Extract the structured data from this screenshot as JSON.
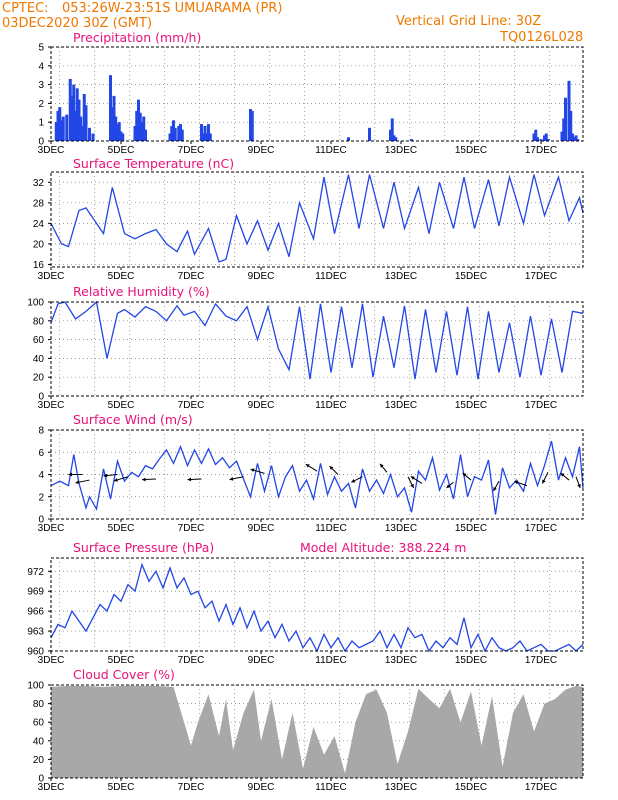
{
  "header": {
    "center": "CPTEC:",
    "location": "053:26W-23:51S   UMUARAMA (PR)",
    "run": "03DEC2020 30Z (GMT)",
    "grid_note": "Vertical Grid Line: 30Z",
    "code": "TQ0126L028"
  },
  "colors": {
    "header_text": "#f07800",
    "panel_title": "#e8127a",
    "series": "#2346e6",
    "cloud_fill": "#a8a8a8"
  },
  "chart_data": [
    {
      "id": "precip",
      "type": "bar",
      "title": "Precipitation (mm/h)",
      "ylim": [
        0,
        5
      ],
      "yticks": [
        0,
        1,
        2,
        3,
        4,
        5
      ],
      "xlabels": [
        "3DEC",
        "5DEC",
        "7DEC",
        "9DEC",
        "11DEC",
        "13DEC",
        "15DEC",
        "17DEC"
      ],
      "grid": true,
      "x_days": [
        0.15,
        0.2,
        0.25,
        0.3,
        0.35,
        0.45,
        0.55,
        0.6,
        0.65,
        0.7,
        0.75,
        0.8,
        0.85,
        0.9,
        0.95,
        1.0,
        1.1,
        1.2,
        1.7,
        1.75,
        1.8,
        1.85,
        1.9,
        1.95,
        2.0,
        2.05,
        2.4,
        2.45,
        2.5,
        2.55,
        2.6,
        2.65,
        2.7,
        3.4,
        3.45,
        3.5,
        3.55,
        3.65,
        3.7,
        3.75,
        4.3,
        4.35,
        4.4,
        4.45,
        4.5,
        4.55,
        5.7,
        5.75,
        8.5,
        9.1,
        9.7,
        9.75,
        9.8,
        9.85,
        10.3,
        13.8,
        13.85,
        13.9,
        14.0,
        14.1,
        14.15,
        14.2,
        14.6,
        14.65,
        14.7,
        14.8,
        14.85,
        14.9,
        14.95,
        15.0,
        15.05
      ],
      "values": [
        1.0,
        1.6,
        1.8,
        1.1,
        1.3,
        1.4,
        3.3,
        2.4,
        3.0,
        1.6,
        2.8,
        2.2,
        1.3,
        0.8,
        2.5,
        1.9,
        0.7,
        0.4,
        3.5,
        1.8,
        2.4,
        1.3,
        0.9,
        1.0,
        0.5,
        0.4,
        0.8,
        1.6,
        2.2,
        1.5,
        1.0,
        1.3,
        0.6,
        0.4,
        0.8,
        1.1,
        0.7,
        0.8,
        0.9,
        0.6,
        0.9,
        0.4,
        0.8,
        0.4,
        0.9,
        0.4,
        1.7,
        1.6,
        0.2,
        0.7,
        0.6,
        1.2,
        0.3,
        0.2,
        0.1,
        0.4,
        0.6,
        0.2,
        0.1,
        0.3,
        0.4,
        0.1,
        0.5,
        1.2,
        2.3,
        3.2,
        1.6,
        0.4,
        0.2,
        0.3,
        0.1
      ]
    },
    {
      "id": "temp",
      "type": "line",
      "title": "Surface Temperature (nC)",
      "ylim": [
        15.5,
        34
      ],
      "yticks": [
        16,
        20,
        24,
        28,
        32
      ],
      "xlabels": [
        "3DEC",
        "5DEC",
        "7DEC",
        "9DEC",
        "11DEC",
        "13DEC",
        "15DEC",
        "17DEC"
      ],
      "grid": true,
      "x_days": [
        0.0,
        0.3,
        0.5,
        0.8,
        1.0,
        1.3,
        1.5,
        1.75,
        2.1,
        2.4,
        2.7,
        3.0,
        3.3,
        3.6,
        3.9,
        4.1,
        4.5,
        4.8,
        5.0,
        5.3,
        5.6,
        5.9,
        6.2,
        6.5,
        6.8,
        7.1,
        7.5,
        7.8,
        8.1,
        8.5,
        8.8,
        9.1,
        9.5,
        9.8,
        10.1,
        10.5,
        10.8,
        11.1,
        11.5,
        11.8,
        12.1,
        12.5,
        12.8,
        13.1,
        13.5,
        13.8,
        14.1,
        14.5,
        14.8,
        15.1,
        15.2
      ],
      "values": [
        24,
        20,
        19.5,
        26.5,
        27,
        24,
        22,
        31,
        22,
        21,
        22,
        22.8,
        20,
        18.5,
        22.5,
        18,
        23,
        16.5,
        17,
        25.5,
        20,
        24.5,
        18.8,
        24,
        17.5,
        28,
        21,
        33,
        22,
        33.5,
        23,
        33.5,
        23,
        32,
        23,
        31,
        22,
        32,
        23,
        33,
        23,
        32.5,
        23.5,
        33,
        24,
        33.5,
        25.5,
        33,
        24.5,
        29,
        26
      ]
    },
    {
      "id": "rh",
      "type": "line",
      "title": "Relative Humidity (%)",
      "ylim": [
        0,
        100
      ],
      "yticks": [
        0,
        20,
        40,
        60,
        80,
        100
      ],
      "xlabels": [
        "3DEC",
        "5DEC",
        "7DEC",
        "9DEC",
        "11DEC",
        "13DEC",
        "15DEC",
        "17DEC"
      ],
      "grid": true,
      "x_days": [
        0.0,
        0.2,
        0.4,
        0.7,
        1.0,
        1.3,
        1.6,
        1.9,
        2.1,
        2.4,
        2.7,
        3.0,
        3.3,
        3.6,
        3.8,
        4.1,
        4.4,
        4.7,
        5.0,
        5.3,
        5.6,
        5.9,
        6.2,
        6.5,
        6.8,
        7.1,
        7.4,
        7.7,
        8.0,
        8.3,
        8.6,
        8.9,
        9.2,
        9.5,
        9.8,
        10.1,
        10.4,
        10.7,
        11.0,
        11.3,
        11.6,
        11.9,
        12.2,
        12.5,
        12.8,
        13.1,
        13.4,
        13.7,
        14.0,
        14.3,
        14.6,
        14.9,
        15.2
      ],
      "values": [
        78,
        98,
        100,
        82,
        90,
        100,
        40,
        88,
        92,
        84,
        95,
        90,
        80,
        96,
        86,
        90,
        75,
        98,
        85,
        80,
        95,
        60,
        95,
        50,
        28,
        95,
        18,
        98,
        25,
        95,
        30,
        98,
        20,
        85,
        30,
        96,
        18,
        92,
        25,
        90,
        22,
        95,
        18,
        90,
        25,
        78,
        20,
        85,
        22,
        82,
        25,
        90,
        88
      ]
    },
    {
      "id": "wind",
      "type": "line",
      "title": "Surface Wind (m/s)",
      "ylim": [
        0,
        8
      ],
      "yticks": [
        0,
        2,
        4,
        6,
        8
      ],
      "xlabels": [
        "3DEC",
        "5DEC",
        "7DEC",
        "9DEC",
        "11DEC",
        "13DEC",
        "15DEC",
        "17DEC"
      ],
      "grid": true,
      "x_days": [
        0.0,
        0.25,
        0.5,
        0.65,
        0.8,
        1.0,
        1.1,
        1.3,
        1.5,
        1.7,
        1.9,
        2.1,
        2.3,
        2.5,
        2.7,
        2.9,
        3.1,
        3.3,
        3.5,
        3.7,
        3.9,
        4.1,
        4.3,
        4.5,
        4.7,
        4.9,
        5.1,
        5.3,
        5.5,
        5.7,
        5.9,
        6.1,
        6.3,
        6.5,
        6.7,
        6.9,
        7.1,
        7.3,
        7.5,
        7.7,
        7.9,
        8.1,
        8.3,
        8.5,
        8.7,
        8.9,
        9.1,
        9.3,
        9.5,
        9.7,
        9.9,
        10.1,
        10.3,
        10.5,
        10.7,
        10.9,
        11.1,
        11.3,
        11.5,
        11.7,
        11.9,
        12.1,
        12.3,
        12.5,
        12.7,
        12.9,
        13.1,
        13.3,
        13.5,
        13.7,
        13.9,
        14.1,
        14.3,
        14.5,
        14.7,
        14.9,
        15.1,
        15.2
      ],
      "values": [
        3.0,
        3.4,
        3.0,
        5.8,
        3.2,
        1.0,
        2.0,
        0.9,
        4.5,
        1.8,
        5.2,
        3.4,
        4.2,
        3.8,
        4.8,
        4.5,
        5.4,
        6.2,
        5.0,
        6.5,
        4.8,
        6.2,
        5.0,
        6.3,
        4.9,
        5.5,
        4.6,
        5.2,
        3.6,
        2.0,
        5.0,
        2.5,
        4.8,
        2.0,
        3.8,
        4.8,
        2.5,
        3.5,
        1.8,
        5.0,
        2.2,
        3.8,
        2.5,
        3.2,
        1.0,
        4.5,
        2.5,
        3.5,
        2.3,
        4.0,
        2.0,
        2.8,
        0.6,
        4.3,
        3.5,
        5.5,
        2.6,
        4.0,
        1.8,
        5.8,
        2.0,
        3.8,
        3.5,
        5.3,
        0.4,
        4.6,
        2.8,
        3.5,
        2.5,
        5.0,
        3.0,
        4.8,
        7.0,
        3.5,
        5.5,
        3.8,
        6.5,
        2.8
      ]
    },
    {
      "id": "pressure",
      "type": "line",
      "title": "Surface Pressure (hPa)",
      "subtitle": "Model Altitude: 388.224 m",
      "ylim": [
        960,
        974
      ],
      "yticks": [
        960,
        963,
        966,
        969,
        972
      ],
      "xlabels": [
        "3DEC",
        "5DEC",
        "7DEC",
        "9DEC",
        "11DEC",
        "13DEC",
        "15DEC",
        "17DEC"
      ],
      "grid": true,
      "x_days": [
        0.0,
        0.2,
        0.4,
        0.6,
        0.8,
        1.0,
        1.2,
        1.4,
        1.6,
        1.8,
        2.0,
        2.2,
        2.4,
        2.6,
        2.8,
        3.0,
        3.2,
        3.4,
        3.6,
        3.8,
        4.0,
        4.2,
        4.4,
        4.6,
        4.8,
        5.0,
        5.2,
        5.4,
        5.6,
        5.8,
        6.0,
        6.2,
        6.4,
        6.6,
        6.8,
        7.0,
        7.2,
        7.4,
        7.6,
        7.8,
        8.0,
        8.2,
        8.4,
        8.6,
        8.8,
        9.0,
        9.2,
        9.4,
        9.6,
        9.8,
        10.0,
        10.2,
        10.4,
        10.6,
        10.8,
        11.0,
        11.2,
        11.4,
        11.6,
        11.8,
        12.0,
        12.2,
        12.4,
        12.6,
        12.8,
        13.0,
        13.2,
        13.4,
        13.6,
        13.8,
        14.0,
        14.2,
        14.4,
        14.6,
        14.8,
        15.0,
        15.2
      ],
      "values": [
        962,
        964,
        963.5,
        966,
        964.5,
        963,
        965,
        967,
        966,
        968.5,
        967.5,
        970,
        969,
        973,
        970.5,
        972,
        969.5,
        972.5,
        969.5,
        971,
        968.5,
        969,
        966.5,
        967.5,
        964.5,
        967,
        964,
        966.5,
        963.5,
        966,
        963,
        964.5,
        962,
        964,
        961.5,
        963,
        960.5,
        962,
        960,
        962.5,
        960.5,
        962,
        960,
        961.5,
        960.5,
        961,
        961.5,
        963,
        960.5,
        962.5,
        960.5,
        963.5,
        962,
        962.5,
        960,
        961.5,
        960.5,
        962,
        961,
        965,
        960.5,
        962.5,
        960,
        962,
        960.5,
        960,
        960.5,
        961.5,
        960,
        960.5,
        961,
        960,
        960,
        960.5,
        961,
        960,
        961
      ]
    },
    {
      "id": "cloud",
      "type": "area",
      "title": "Cloud Cover (%)",
      "ylim": [
        0,
        100
      ],
      "yticks": [
        0,
        20,
        40,
        60,
        80,
        100
      ],
      "xlabels": [
        "3DEC",
        "5DEC",
        "7DEC",
        "9DEC",
        "11DEC",
        "13DEC",
        "15DEC",
        "17DEC"
      ],
      "grid": true,
      "x_days": [
        0.0,
        0.5,
        1.0,
        1.5,
        2.0,
        2.5,
        3.0,
        3.5,
        4.0,
        4.2,
        4.5,
        4.8,
        5.0,
        5.2,
        5.5,
        5.8,
        6.0,
        6.3,
        6.6,
        6.9,
        7.2,
        7.5,
        7.8,
        8.1,
        8.4,
        8.7,
        9.0,
        9.3,
        9.6,
        9.9,
        10.2,
        10.5,
        10.8,
        11.1,
        11.4,
        11.7,
        12.0,
        12.3,
        12.6,
        12.9,
        13.2,
        13.5,
        13.8,
        14.1,
        14.4,
        14.7,
        15.0,
        15.2
      ],
      "values": [
        98,
        99,
        99,
        98,
        99,
        99,
        99,
        98,
        35,
        60,
        90,
        45,
        85,
        30,
        70,
        95,
        40,
        85,
        20,
        70,
        10,
        55,
        25,
        45,
        5,
        60,
        90,
        95,
        70,
        15,
        50,
        96,
        85,
        75,
        96,
        60,
        93,
        35,
        88,
        12,
        70,
        90,
        50,
        80,
        85,
        95,
        99,
        98
      ]
    }
  ]
}
